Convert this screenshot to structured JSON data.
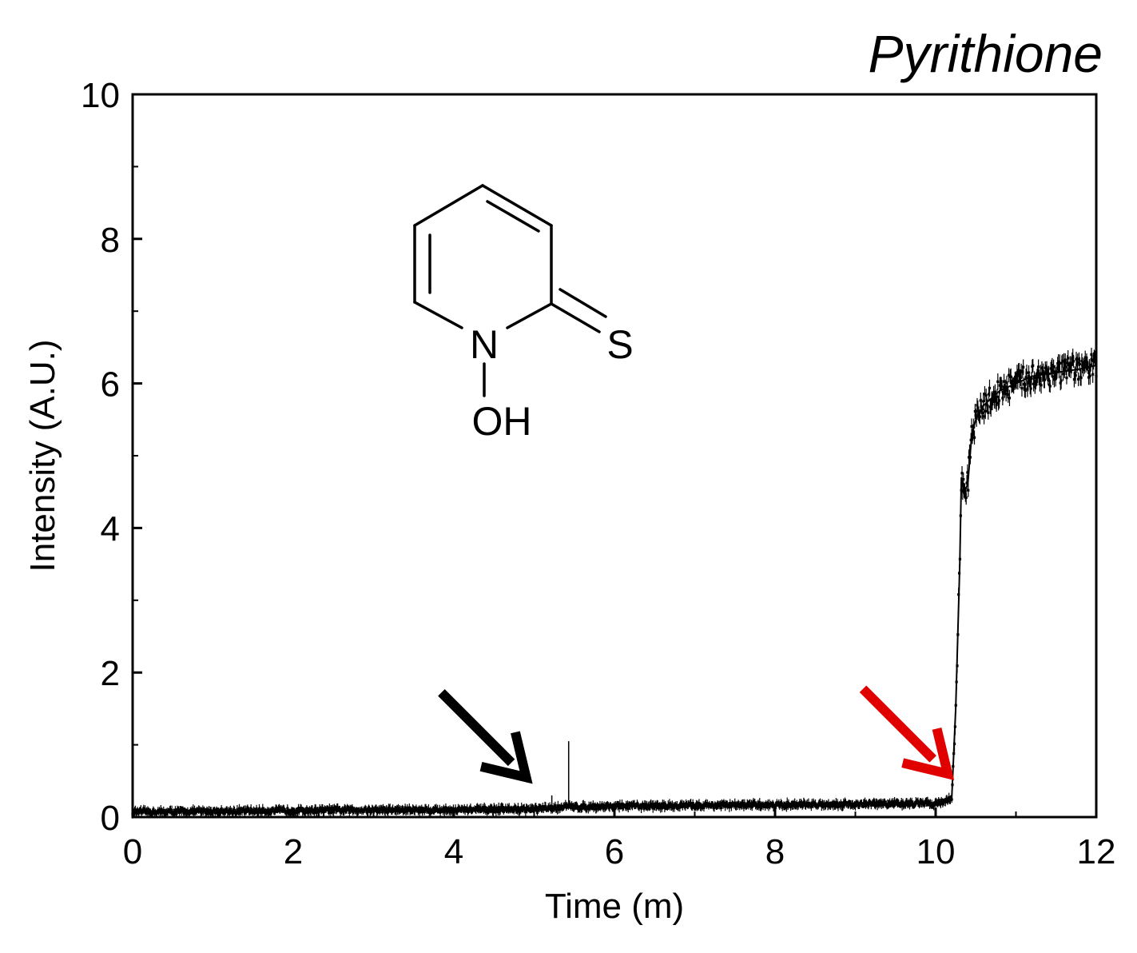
{
  "chart_data": {
    "type": "line",
    "title": "Pyrithione",
    "xlabel": "Time (m)",
    "ylabel": "Intensity (A.U.)",
    "xlim": [
      0,
      12
    ],
    "ylim": [
      0,
      10
    ],
    "xticks": [
      0,
      2,
      4,
      6,
      8,
      10,
      12
    ],
    "yticks": [
      0,
      2,
      4,
      6,
      8,
      10
    ],
    "grid": false,
    "legend": "none",
    "series": [
      {
        "color": "#000000",
        "marker": "point-with-error-bar",
        "x": [
          0,
          1,
          2,
          3,
          4,
          5,
          5.2,
          5.4,
          5.5,
          6,
          7,
          8,
          9,
          10,
          10.2,
          10.25,
          10.3,
          10.32,
          10.35,
          10.4,
          10.45,
          10.5,
          10.6,
          10.8,
          11,
          11.2,
          11.5,
          11.8,
          12
        ],
        "y": [
          0.07,
          0.08,
          0.09,
          0.1,
          0.1,
          0.11,
          0.12,
          0.15,
          0.14,
          0.15,
          0.16,
          0.17,
          0.18,
          0.19,
          0.25,
          1.5,
          3.5,
          4.7,
          4.5,
          4.6,
          5.3,
          5.5,
          5.7,
          5.9,
          6.0,
          6.1,
          6.15,
          6.2,
          6.25
        ]
      }
    ],
    "spikes": [
      {
        "x": 5.43,
        "y": 1.05
      },
      {
        "x": 5.22,
        "y": 0.3
      }
    ],
    "annotations": [
      {
        "type": "arrow",
        "color": "#000000",
        "points_to_x": 4.9,
        "points_to_y": 0.55
      },
      {
        "type": "arrow",
        "color": "#e00000",
        "points_to_x": 10.15,
        "points_to_y": 0.6
      }
    ]
  },
  "structure": {
    "atoms": {
      "nitrogen": "N",
      "sulfur": "S",
      "hydroxyl": "OH"
    }
  }
}
